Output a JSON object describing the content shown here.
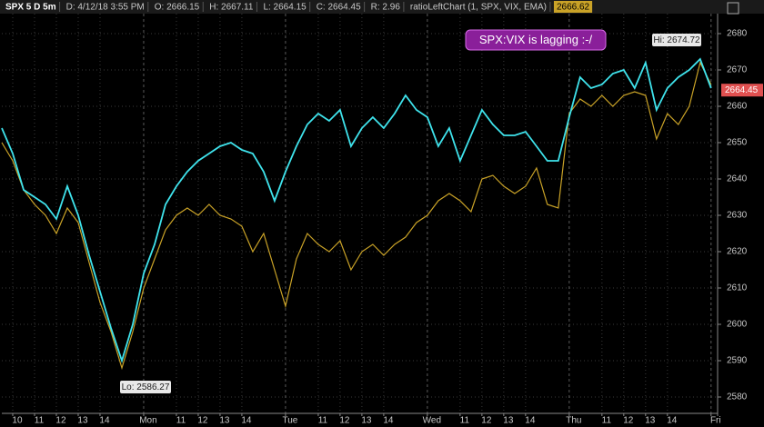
{
  "header": [
    "SPX 5 D 5m",
    "D: 4/12/18 3:55 PM",
    "O: 2666.15",
    "H: 2667.11",
    "L: 2664.15",
    "C: 2664.45",
    "R: 2.96",
    "ratioLeftChart (1, SPX, VIX, EMA)",
    "2666.62"
  ],
  "chart_data": {
    "type": "line",
    "annotations": {
      "note": "SPX:VIX is lagging :-/",
      "high": "Hi: 2674.72",
      "low": "Lo: 2586.27"
    },
    "price_tag": 2664.45,
    "x": [
      0,
      0.5,
      1,
      1.5,
      2,
      2.5,
      3,
      3.5,
      4,
      4.5,
      5,
      5.5,
      6,
      6.5,
      7,
      7.5,
      8,
      8.5,
      9,
      9.5,
      10,
      10.5,
      11,
      11.5,
      12,
      12.5,
      13,
      13.5,
      14,
      14.5,
      15,
      15.5,
      16,
      16.5,
      17,
      17.5,
      18,
      18.5,
      19,
      19.5,
      20,
      20.5,
      21,
      21.5,
      22,
      22.5,
      23,
      23.5,
      24,
      24.5,
      25,
      25.5,
      26,
      26.5,
      27,
      27.5,
      28,
      28.5,
      29,
      29.5,
      30,
      30.5,
      31,
      31.5,
      32,
      32.5
    ],
    "series": [
      {
        "name": "SPX",
        "color": "#3fe3ec",
        "values": [
          2654,
          2647,
          2637,
          2635,
          2633,
          2629,
          2638,
          2630,
          2619,
          2609,
          2599,
          2590,
          2600,
          2614,
          2622,
          2633,
          2638,
          2642,
          2645,
          2647,
          2649,
          2650,
          2648,
          2647,
          2642,
          2634,
          2642,
          2649,
          2655,
          2658,
          2656,
          2659,
          2649,
          2654,
          2657,
          2654,
          2658,
          2663,
          2659,
          2657,
          2649,
          2654,
          2645,
          2652,
          2659,
          2655,
          2652,
          2652,
          2653,
          2649,
          2645,
          2645,
          2657,
          2668,
          2665,
          2666,
          2669,
          2670,
          2665,
          2672,
          2659,
          2665,
          2668,
          2670,
          2673,
          2665
        ]
      },
      {
        "name": "ratioLeftChart",
        "color": "#c9a227",
        "values": [
          2650,
          2645,
          2637,
          2633,
          2630,
          2625,
          2632,
          2628,
          2617,
          2606,
          2598,
          2588,
          2598,
          2610,
          2618,
          2626,
          2630,
          2632,
          2630,
          2633,
          2630,
          2629,
          2627,
          2620,
          2625,
          2615,
          2605,
          2618,
          2625,
          2622,
          2620,
          2623,
          2615,
          2620,
          2622,
          2619,
          2622,
          2624,
          2628,
          2630,
          2634,
          2636,
          2634,
          2631,
          2640,
          2641,
          2638,
          2636,
          2638,
          2643,
          2633,
          2632,
          2658,
          2662,
          2660,
          2663,
          2660,
          2663,
          2664,
          2663,
          2651,
          2658,
          2655,
          2660,
          2672,
          2666
        ]
      }
    ],
    "xlim": [
      0,
      32.8
    ],
    "xticks": [
      {
        "value": 0.5,
        "label": "10"
      },
      {
        "value": 1.5,
        "label": "11"
      },
      {
        "value": 2.5,
        "label": "12"
      },
      {
        "value": 3.5,
        "label": "13"
      },
      {
        "value": 4.5,
        "label": "14"
      },
      {
        "value": 6.5,
        "label": "Mon"
      },
      {
        "value": 8,
        "label": "11"
      },
      {
        "value": 9,
        "label": "12"
      },
      {
        "value": 10,
        "label": "13"
      },
      {
        "value": 11,
        "label": "14"
      },
      {
        "value": 13,
        "label": "Tue"
      },
      {
        "value": 14.5,
        "label": "11"
      },
      {
        "value": 15.5,
        "label": "12"
      },
      {
        "value": 16.5,
        "label": "13"
      },
      {
        "value": 17.5,
        "label": "14"
      },
      {
        "value": 19.5,
        "label": "Wed"
      },
      {
        "value": 21,
        "label": "11"
      },
      {
        "value": 22,
        "label": "12"
      },
      {
        "value": 23,
        "label": "13"
      },
      {
        "value": 24,
        "label": "14"
      },
      {
        "value": 26,
        "label": "Thu"
      },
      {
        "value": 27.5,
        "label": "11"
      },
      {
        "value": 28.5,
        "label": "12"
      },
      {
        "value": 29.5,
        "label": "13"
      },
      {
        "value": 30.5,
        "label": "14"
      },
      {
        "value": 32.5,
        "label": "Fri"
      }
    ],
    "ylim": [
      2575.5,
      2685.5
    ],
    "yticks": [
      2580,
      2590,
      2600,
      2610,
      2620,
      2630,
      2640,
      2650,
      2660,
      2670,
      2680
    ],
    "grid": true
  }
}
